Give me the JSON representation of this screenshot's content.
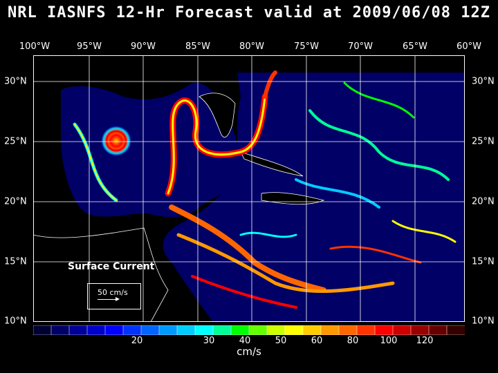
{
  "title": "NRL IASNFS  12-Hr Forecast valid at 2009/06/08 12Z",
  "lon_labels": [
    "100°W",
    "95°W",
    "90°W",
    "85°W",
    "80°W",
    "75°W",
    "70°W",
    "65°W",
    "60°W"
  ],
  "lat_labels": [
    "30°N",
    "25°N",
    "20°N",
    "15°N",
    "10°N"
  ],
  "legend": {
    "title": "Surface Current",
    "scale_label": "50 cm/s"
  },
  "colorbar": {
    "units": "cm/s",
    "ticks": [
      "20",
      "30",
      "40",
      "50",
      "60",
      "80",
      "100",
      "120"
    ],
    "colors": [
      "#000033",
      "#000066",
      "#000099",
      "#0000cc",
      "#0000ff",
      "#0033ff",
      "#0066ff",
      "#0099ff",
      "#00ccff",
      "#00ffff",
      "#00ff99",
      "#00ff00",
      "#66ff00",
      "#ccff00",
      "#ffff00",
      "#ffcc00",
      "#ff9900",
      "#ff6600",
      "#ff3300",
      "#ff0000",
      "#cc0000",
      "#990000",
      "#660000",
      "#330000"
    ]
  },
  "colors": {
    "ocean_bg": "#000066",
    "land": "#000000",
    "coast": "#ffffff"
  }
}
